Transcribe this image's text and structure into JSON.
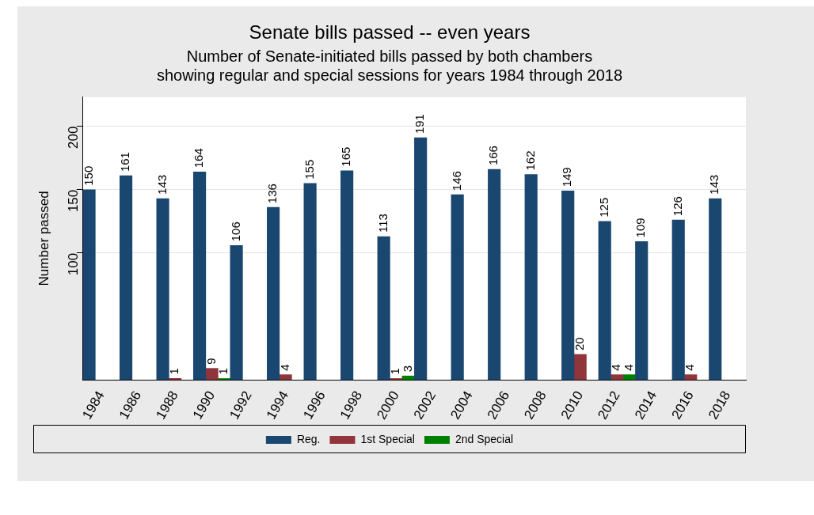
{
  "chart_data": {
    "type": "bar",
    "title": "Senate bills passed -- even years",
    "subtitle": [
      "Number of Senate-initiated bills passed by both chambers",
      "showing regular and special sessions for years 1984 through 2018"
    ],
    "ylabel": "Number passed",
    "categories": [
      "1984",
      "1986",
      "1988",
      "1990",
      "1992",
      "1994",
      "1996",
      "1998",
      "2000",
      "2002",
      "2004",
      "2006",
      "2008",
      "2010",
      "2012",
      "2014",
      "2016",
      "2018"
    ],
    "series": [
      {
        "name": "Reg.",
        "color": "#1a476f",
        "values": [
          150,
          161,
          143,
          164,
          106,
          136,
          155,
          165,
          113,
          191,
          146,
          166,
          162,
          149,
          125,
          109,
          126,
          143
        ]
      },
      {
        "name": "1st Special",
        "color": "#90353b",
        "values": [
          null,
          null,
          1,
          9,
          null,
          4,
          null,
          null,
          1,
          null,
          null,
          null,
          null,
          20,
          4,
          null,
          4,
          null
        ]
      },
      {
        "name": "2nd Special",
        "color": "#008000",
        "values": [
          null,
          null,
          null,
          1,
          null,
          null,
          null,
          null,
          3,
          null,
          null,
          null,
          null,
          null,
          4,
          null,
          null,
          null
        ]
      }
    ],
    "ylim": [
      0,
      223
    ],
    "yticks": [
      100,
      150,
      200
    ],
    "grid": "y",
    "legend": "bottom",
    "data_labels": true
  }
}
